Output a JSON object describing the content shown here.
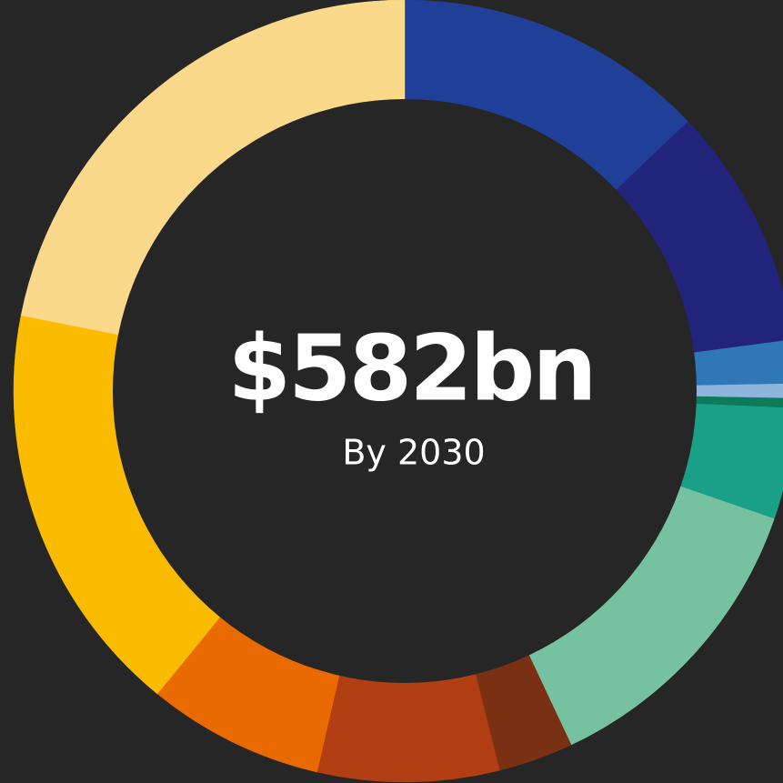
{
  "chart_data": {
    "type": "donut",
    "title": "$582bn",
    "subtitle": "By 2030",
    "values": [
      12.9,
      10.0,
      1.8,
      0.6,
      0.4,
      4.6,
      12.7,
      3.1,
      7.5,
      7.3,
      17.2,
      21.9
    ],
    "colors": [
      "#1f3f98",
      "#22237a",
      "#2f78b5",
      "#8fb5dc",
      "#0d7a5a",
      "#1aa086",
      "#76c2a0",
      "#7a3012",
      "#b23e14",
      "#e96a00",
      "#fbbc00",
      "#fbd98a"
    ]
  }
}
